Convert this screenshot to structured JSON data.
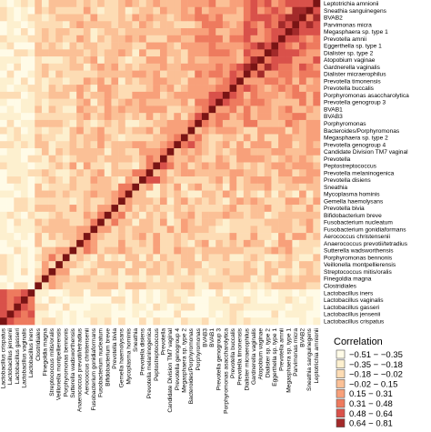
{
  "chart_data": {
    "type": "heatmap",
    "row_labels_top_to_bottom": [
      "Leptotrichia amnionii",
      "Sneathia sanguinegens",
      "BVAB2",
      "Parvimonas micra",
      "Megasphaera sp. type 1",
      "Prevotella amnii",
      "Eggerthella sp. type 1",
      "Dialister sp. type 2",
      "Atopobium vaginae",
      "Gardnerella vaginalis",
      "Dialister micraerophilus",
      "Prevotella timonensis",
      "Prevotella buccalis",
      "Porphyromonas asaccharolytica",
      "Prevotella genogroup 3",
      "BVAB1",
      "BVAB3",
      "Porphyromonas",
      "Bacteroides/Porphyromonas",
      "Megasphaera sp. type 2",
      "Prevotella genogroup 4",
      "Candidate Division TM7 vaginal",
      "Prevotella",
      "Peptostreptococcus",
      "Prevotella melaninogenica",
      "Prevotella disiens",
      "Sneathia",
      "Mycoplasma hominis",
      "Gemella haemolysans",
      "Prevotella bivia",
      "Bifidobacterium breve",
      "Fusobacterium nucleatum",
      "Fusobacterium gonidiaformans",
      "Aerococcus christensenii",
      "Anaerococcus prevotii/tetradius",
      "Sutterella wadsworthensis",
      "Porphyromonas bennonis",
      "Veillonella montpellierensis",
      "Streptococcus mitis/oralis",
      "Finegoldia magna",
      "Clostridiales",
      "Lactobacillus iners",
      "Lactobacillus vaginalis",
      "Lactobacillus gasseri",
      "Lactobacillus jensenii",
      "Lactobacillus crispatus"
    ],
    "column_labels_left_to_right": [
      "Lactobacillus crispatus",
      "Lactobacillus jensenii",
      "Lactobacillus gasseri",
      "Lactobacillus vaginalis",
      "Lactobacillus iners",
      "Clostridiales",
      "Finegoldia magna",
      "Streptococcus mitis/oralis",
      "Veillonella montpellierensis",
      "Porphyromonas bennonis",
      "Sutterella wadsworthensis",
      "Anaerococcus prevotii/tetradius",
      "Aerococcus christensenii",
      "Fusobacterium gonidiaformans",
      "Fusobacterium nucleatum",
      "Bifidobacterium breve",
      "Prevotella bivia",
      "Gemella haemolysans",
      "Mycoplasma hominis",
      "Sneathia",
      "Prevotella disiens",
      "Prevotella melaninogenica",
      "Peptostreptococcus",
      "Prevotella",
      "Candidate Division TM7 vaginal",
      "Prevotella genogroup 4",
      "Megasphaera sp. type 2",
      "Bacteroides/Porphyromonas",
      "Porphyromonas",
      "BVAB3",
      "BVAB1",
      "Prevotella genogroup 3",
      "Porphyromonas asaccharolytica",
      "Prevotella buccalis",
      "Prevotella timonensis",
      "Dialister micraerophilus",
      "Gardnerella vaginalis",
      "Atopobium vaginae",
      "Dialister sp. type 2",
      "Eggerthella sp. type 1",
      "Prevotella amnii",
      "Megasphaera sp. type 1",
      "Parvimonas micra",
      "BVAB2",
      "Sneathia sanguinegens",
      "Leptotrichia amnionii"
    ],
    "diagonal_value": 1,
    "color_scale": {
      "title": "Correlation",
      "bins": [
        {
          "label": "−0.51 − −0.35",
          "color": "#fffbe7"
        },
        {
          "label": "−0.35 − −0.18",
          "color": "#fdf0cf"
        },
        {
          "label": "−0.18 − −0.02",
          "color": "#fddcb4"
        },
        {
          "label": "−0.02 − 0.15",
          "color": "#fbc096"
        },
        {
          "label": "0.15 − 0.31",
          "color": "#f8a07a"
        },
        {
          "label": "0.31 − 0.48",
          "color": "#ee7a5e"
        },
        {
          "label": "0.48 − 0.64",
          "color": "#d9514a"
        },
        {
          "label": "0.64 − 0.81",
          "color": "#a32a2a"
        }
      ],
      "diagonal_color": "#7a1414"
    }
  }
}
